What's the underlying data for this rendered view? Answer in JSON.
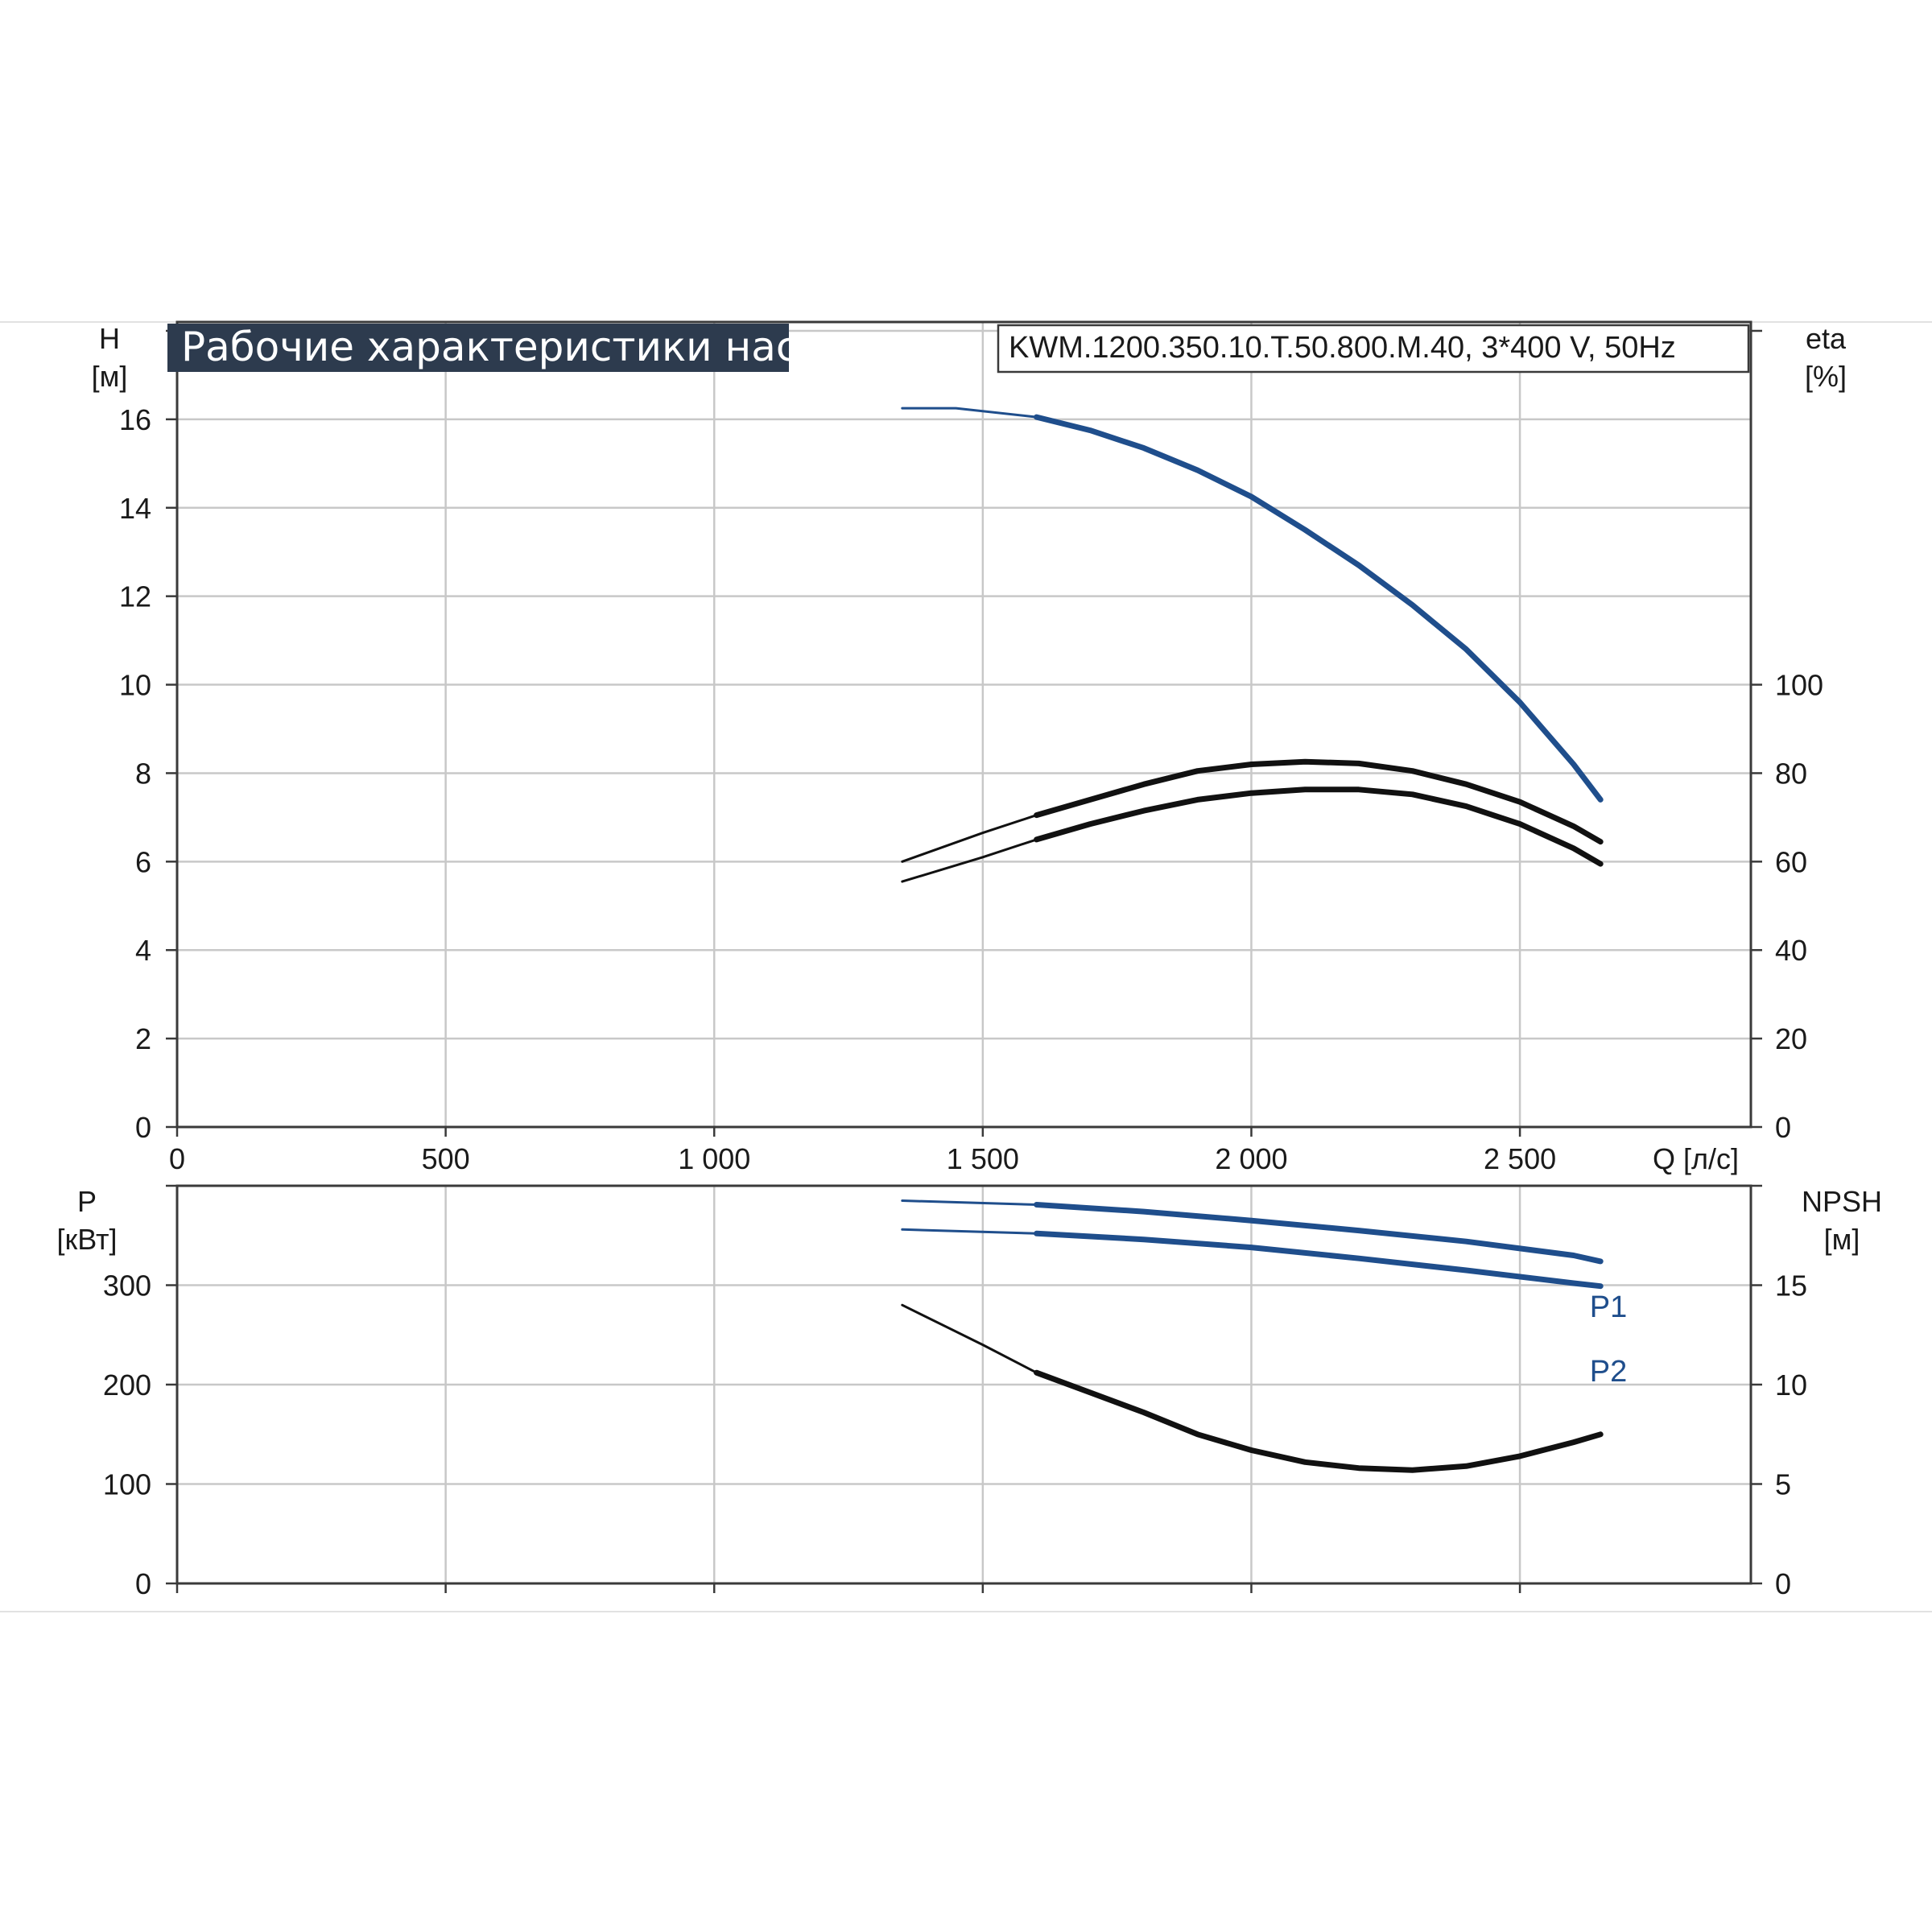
{
  "chart_data": [
    {
      "type": "line",
      "title": "Рабочие характеристики насоса",
      "subtitle": "KWM.1200.350.10.T.50.800.M.40, 3*400 V, 50Hz",
      "x_ticks": [
        "0",
        "500",
        "1 000",
        "1 500",
        "2 000",
        "2 500"
      ],
      "xlabel": "Q [л/с]",
      "xlim": [
        0,
        2930
      ],
      "y_left": {
        "label": "H",
        "unit": "[м]",
        "ticks": [
          "0",
          "2",
          "4",
          "6",
          "8",
          "10",
          "12",
          "14",
          "16"
        ],
        "lim": [
          0,
          18.2
        ]
      },
      "y_right": {
        "label": "eta",
        "unit": "[%]",
        "ticks": [
          "0",
          "20",
          "40",
          "60",
          "80",
          "100"
        ],
        "lim": [
          0,
          182
        ]
      },
      "grid": true,
      "series": [
        {
          "axis": "left",
          "color": "#1f4e8c",
          "x": [
            1350,
            1450,
            1600,
            1700,
            1800,
            1900,
            2000,
            2100,
            2200,
            2300,
            2400,
            2500,
            2600,
            2650
          ],
          "y": [
            16.25,
            16.25,
            16.05,
            15.75,
            15.35,
            14.85,
            14.25,
            13.5,
            12.7,
            11.8,
            10.8,
            9.6,
            8.2,
            7.4
          ]
        },
        {
          "axis": "right",
          "color": "#111111",
          "x": [
            1350,
            1500,
            1600,
            1700,
            1800,
            1900,
            2000,
            2100,
            2200,
            2300,
            2400,
            2500,
            2600,
            2650
          ],
          "y": [
            55.5,
            61,
            65,
            68.5,
            71.5,
            74,
            75.5,
            76.3,
            76.3,
            75.2,
            72.5,
            68.5,
            63,
            59.5
          ]
        },
        {
          "axis": "right",
          "color": "#111111",
          "x": [
            1350,
            1500,
            1600,
            1700,
            1800,
            1900,
            2000,
            2100,
            2200,
            2300,
            2400,
            2500,
            2600,
            2650
          ],
          "y": [
            60,
            66.5,
            70.5,
            74,
            77.5,
            80.5,
            82,
            82.6,
            82.2,
            80.5,
            77.5,
            73.5,
            68,
            64.5
          ]
        }
      ]
    },
    {
      "type": "line",
      "x_ticks": [],
      "xlim": [
        0,
        2930
      ],
      "y_left": {
        "label": "P",
        "unit": "[кВт]",
        "ticks": [
          "0",
          "100",
          "200",
          "300"
        ],
        "lim": [
          0,
          400
        ]
      },
      "y_right": {
        "label": "NPSH",
        "unit": "[м]",
        "ticks": [
          "0",
          "5",
          "10",
          "15"
        ],
        "lim": [
          0,
          20
        ]
      },
      "grid": true,
      "series": [
        {
          "name": "P1",
          "axis": "left",
          "color": "#1f4e8c",
          "x": [
            1350,
            1600,
            1800,
            2000,
            2200,
            2400,
            2600,
            2650
          ],
          "y": [
            385,
            381,
            374,
            365,
            355,
            344,
            330,
            324
          ]
        },
        {
          "name": "P2",
          "axis": "left",
          "color": "#1f4e8c",
          "x": [
            1350,
            1600,
            1800,
            2000,
            2200,
            2400,
            2600,
            2650
          ],
          "y": [
            356,
            352,
            346,
            338,
            327,
            315,
            302,
            299
          ]
        },
        {
          "axis": "right",
          "color": "#111111",
          "x": [
            1350,
            1500,
            1600,
            1700,
            1800,
            1900,
            2000,
            2100,
            2200,
            2300,
            2400,
            2500,
            2600,
            2650
          ],
          "y": [
            14,
            12,
            10.6,
            9.6,
            8.6,
            7.5,
            6.7,
            6.1,
            5.8,
            5.7,
            5.9,
            6.4,
            7.1,
            7.5
          ]
        }
      ]
    }
  ]
}
